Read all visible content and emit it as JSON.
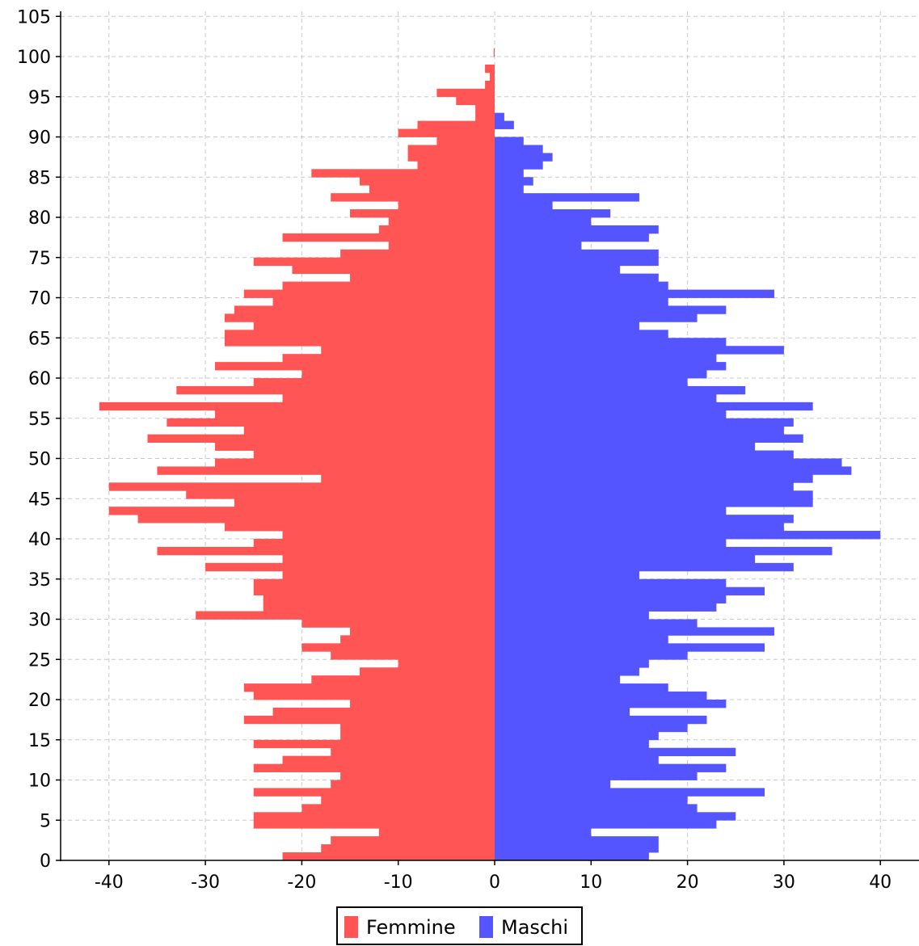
{
  "chart_data": {
    "type": "bar",
    "orientation": "horizontal",
    "layout": "population-pyramid",
    "title": "",
    "xlabel": "",
    "ylabel": "",
    "xlim": [
      -45,
      45
    ],
    "ylim": [
      0,
      105
    ],
    "xticks": [
      -40,
      -30,
      -20,
      -10,
      0,
      10,
      20,
      30,
      40
    ],
    "yticks": [
      0,
      5,
      10,
      15,
      20,
      25,
      30,
      35,
      40,
      45,
      50,
      55,
      60,
      65,
      70,
      75,
      80,
      85,
      90,
      95,
      100,
      105
    ],
    "grid": true,
    "legend_position": "bottom-center",
    "categories": [
      0,
      1,
      2,
      3,
      4,
      5,
      6,
      7,
      8,
      9,
      10,
      11,
      12,
      13,
      14,
      15,
      16,
      17,
      18,
      19,
      20,
      21,
      22,
      23,
      24,
      25,
      26,
      27,
      28,
      29,
      30,
      31,
      32,
      33,
      34,
      35,
      36,
      37,
      38,
      39,
      40,
      41,
      42,
      43,
      44,
      45,
      46,
      47,
      48,
      49,
      50,
      51,
      52,
      53,
      54,
      55,
      56,
      57,
      58,
      59,
      60,
      61,
      62,
      63,
      64,
      65,
      66,
      67,
      68,
      69,
      70,
      71,
      72,
      73,
      74,
      75,
      76,
      77,
      78,
      79,
      80,
      81,
      82,
      83,
      84,
      85,
      86,
      87,
      88,
      89,
      90,
      91,
      92,
      93,
      94,
      95,
      96,
      97,
      98,
      99,
      100
    ],
    "series": [
      {
        "name": "Femmine",
        "color": "#ff5555",
        "values": [
          -22,
          -18,
          -17,
          -12,
          -25,
          -25,
          -20,
          -18,
          -25,
          -17,
          -16,
          -25,
          -22,
          -17,
          -25,
          -16,
          -16,
          -26,
          -23,
          -15,
          -25,
          -26,
          -19,
          -14,
          -10,
          -17,
          -20,
          -16,
          -15,
          -20,
          -31,
          -24,
          -24,
          -25,
          -25,
          -22,
          -30,
          -22,
          -35,
          -25,
          -22,
          -28,
          -37,
          -40,
          -27,
          -32,
          -40,
          -18,
          -35,
          -29,
          -25,
          -29,
          -36,
          -26,
          -34,
          -29,
          -41,
          -22,
          -33,
          -25,
          -20,
          -29,
          -22,
          -18,
          -28,
          -28,
          -25,
          -28,
          -27,
          -23,
          -26,
          -22,
          -15,
          -21,
          -25,
          -16,
          -11,
          -22,
          -12,
          -11,
          -15,
          -10,
          -17,
          -13,
          -14,
          -19,
          -8,
          -9,
          -9,
          -6,
          -10,
          -8,
          -2,
          -2,
          -4,
          -6,
          -1,
          -0.5,
          -1,
          0,
          -0.1
        ]
      },
      {
        "name": "Maschi",
        "color": "#5555ff",
        "values": [
          16,
          17,
          17,
          10,
          23,
          25,
          21,
          20,
          28,
          12,
          21,
          24,
          17,
          25,
          16,
          17,
          20,
          22,
          14,
          24,
          22,
          18,
          13,
          15,
          16,
          20,
          28,
          18,
          29,
          21,
          16,
          23,
          24,
          28,
          24,
          15,
          31,
          27,
          35,
          24,
          40,
          30,
          31,
          24,
          33,
          33,
          31,
          33,
          37,
          36,
          31,
          27,
          32,
          30,
          31,
          24,
          33,
          23,
          26,
          20,
          22,
          24,
          23,
          30,
          24,
          18,
          15,
          21,
          24,
          18,
          29,
          18,
          17,
          13,
          17,
          17,
          9,
          16,
          17,
          10,
          12,
          6,
          15,
          3,
          4,
          3,
          5,
          6,
          5,
          3,
          0,
          2,
          1,
          0,
          0,
          0,
          0,
          0,
          0,
          0,
          0
        ]
      }
    ]
  },
  "legend": {
    "items": [
      {
        "label": "Femmine",
        "color": "#ff5555"
      },
      {
        "label": "Maschi",
        "color": "#5555ff"
      }
    ]
  }
}
